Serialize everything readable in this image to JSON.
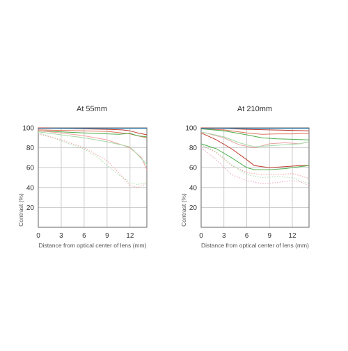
{
  "chart_data": [
    {
      "type": "line",
      "title": "At 55mm",
      "xlabel": "Distance from optical center of lens (mm)",
      "ylabel": "Contrast (%)",
      "xlim": [
        0,
        14.2
      ],
      "ylim": [
        0,
        100
      ],
      "x_ticks": [
        0,
        3,
        6,
        9,
        12
      ],
      "y_ticks": [
        20,
        40,
        60,
        80,
        100
      ],
      "grid": true,
      "series": [
        {
          "color": "#c0392b",
          "style": "solid",
          "x": [
            0,
            3,
            6,
            9,
            11,
            12,
            13,
            14.2
          ],
          "y": [
            100,
            99.5,
            99,
            98.5,
            98,
            97,
            95,
            93
          ]
        },
        {
          "color": "#e17055",
          "style": "solid",
          "x": [
            0,
            3,
            6,
            9,
            12,
            13,
            14.2
          ],
          "y": [
            98,
            97.5,
            97,
            96.5,
            94,
            92,
            90
          ]
        },
        {
          "color": "#4cae4c",
          "style": "solid",
          "x": [
            0,
            3,
            6,
            9,
            10.5,
            12,
            13,
            14.2
          ],
          "y": [
            97,
            96,
            95,
            94,
            93.5,
            94.5,
            92,
            91
          ]
        },
        {
          "color": "#2980b9",
          "style": "solid",
          "x": [
            0,
            3,
            6,
            9,
            12,
            14.2
          ],
          "y": [
            99.5,
            99.5,
            99.5,
            99.5,
            99.5,
            99.5
          ]
        },
        {
          "color": "#f0a0a0",
          "style": "solid",
          "x": [
            0,
            3,
            6,
            9,
            12,
            13.5,
            14.2
          ],
          "y": [
            97,
            95,
            92,
            88,
            80,
            70,
            58
          ]
        },
        {
          "color": "#a4d9a4",
          "style": "solid",
          "x": [
            0,
            3,
            6,
            9,
            12,
            13,
            14.2
          ],
          "y": [
            96,
            93,
            90,
            86,
            81,
            73,
            63
          ]
        },
        {
          "color": "#a4d9a4",
          "style": "dotted",
          "x": [
            0,
            2,
            4,
            6,
            8,
            9,
            10.5,
            12,
            13,
            14.2
          ],
          "y": [
            95,
            90,
            84,
            79,
            69,
            62,
            53,
            45,
            43,
            45
          ]
        },
        {
          "color": "#f0a0a0",
          "style": "dotted",
          "x": [
            0,
            3,
            6,
            9,
            10.5,
            12,
            13,
            14.2
          ],
          "y": [
            94,
            88,
            80,
            67,
            55,
            42,
            40,
            44
          ]
        }
      ]
    },
    {
      "type": "line",
      "title": "At 210mm",
      "xlabel": "Distance from optical center of lens (mm)",
      "ylabel": "Contrast (%)",
      "xlim": [
        0,
        14.2
      ],
      "ylim": [
        0,
        100
      ],
      "x_ticks": [
        0,
        3,
        6,
        9,
        12
      ],
      "y_ticks": [
        20,
        40,
        60,
        80,
        100
      ],
      "grid": true,
      "series": [
        {
          "color": "#c0392b",
          "style": "solid",
          "x": [
            0,
            3,
            6,
            9,
            12,
            14.2
          ],
          "y": [
            100,
            99.5,
            98.5,
            98,
            97.5,
            97
          ]
        },
        {
          "color": "#e17055",
          "style": "solid",
          "x": [
            0,
            3,
            6,
            8,
            10,
            12,
            14.2
          ],
          "y": [
            99,
            98,
            95,
            93.5,
            94,
            94,
            94.5
          ]
        },
        {
          "color": "#4cae4c",
          "style": "solid",
          "x": [
            0,
            3,
            6,
            8,
            10,
            12,
            14.2
          ],
          "y": [
            99,
            97,
            93,
            90,
            89,
            88.5,
            88
          ]
        },
        {
          "color": "#2980b9",
          "style": "solid",
          "x": [
            0,
            3,
            6,
            9,
            12,
            14.2
          ],
          "y": [
            99.5,
            99.5,
            99.5,
            99.5,
            99.5,
            99.5
          ]
        },
        {
          "color": "#e6a0a0",
          "style": "solid",
          "x": [
            0,
            3,
            5,
            7,
            9,
            11,
            13,
            14.2
          ],
          "y": [
            96,
            90,
            83,
            80,
            84,
            85,
            84,
            86
          ]
        },
        {
          "color": "#a4d9a4",
          "style": "solid",
          "x": [
            0,
            3,
            5,
            7,
            9,
            11,
            13,
            14.2
          ],
          "y": [
            96,
            91,
            85,
            81,
            82,
            83,
            84,
            86
          ]
        },
        {
          "color": "#c0392b",
          "style": "solid",
          "x": [
            0,
            2,
            4,
            6,
            7,
            9,
            11,
            13,
            14.2
          ],
          "y": [
            95,
            88,
            79,
            68,
            62,
            60,
            61,
            62,
            62
          ]
        },
        {
          "color": "#4cae4c",
          "style": "solid",
          "x": [
            0,
            2,
            4,
            6,
            7,
            9,
            11,
            13,
            14.2
          ],
          "y": [
            84,
            79,
            70,
            60,
            58,
            58,
            59,
            61,
            62
          ]
        },
        {
          "color": "#f0a0a0",
          "style": "dotted",
          "x": [
            0,
            2,
            4,
            6,
            8,
            10,
            12,
            13,
            14.2
          ],
          "y": [
            83,
            75,
            62,
            55,
            53,
            53,
            54,
            52,
            49
          ]
        },
        {
          "color": "#a4d9a4",
          "style": "dotted",
          "x": [
            0,
            2,
            4,
            6,
            8,
            10,
            12,
            13,
            14.2
          ],
          "y": [
            83,
            76,
            63,
            53,
            50,
            51,
            50,
            47,
            44
          ]
        },
        {
          "color": "#e6a0c0",
          "style": "dotted",
          "x": [
            0,
            2,
            4,
            6,
            8,
            10,
            12,
            13,
            14.2
          ],
          "y": [
            80,
            68,
            53,
            47,
            44,
            45,
            47,
            46,
            42
          ]
        }
      ]
    }
  ]
}
